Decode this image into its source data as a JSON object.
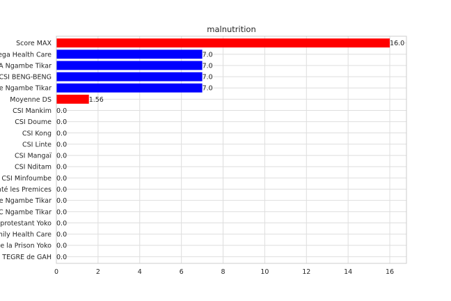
{
  "chart_data": {
    "type": "bar",
    "orientation": "horizontal",
    "title": "malnutrition",
    "xlabel": "",
    "ylabel": "",
    "xlim": [
      0,
      16.8
    ],
    "x_ticks": [
      0,
      2,
      4,
      6,
      8,
      10,
      12,
      14,
      16
    ],
    "grid": true,
    "categories": [
      "Score MAX",
      "ega Health  Care",
      "MA Ngambe Tikar",
      "CSI BENG-BENG",
      "se Ngambe Tikar",
      "Moyenne DS",
      "CSI Mankim",
      "CSI Doume",
      "CSI Kong",
      "CSI Linte",
      "CSI Mangaï",
      "CSI Nditam",
      "CSI Minfoumbe",
      "nté les Premices",
      "de Ngambe Tikar",
      "EC Ngambe Tikar",
      "protestant Yoko",
      "mily Health Care",
      "de la Prison Yoko",
      "TEGRE  de GAH"
    ],
    "values": [
      16.0,
      7.0,
      7.0,
      7.0,
      7.0,
      1.56,
      0.0,
      0.0,
      0.0,
      0.0,
      0.0,
      0.0,
      0.0,
      0.0,
      0.0,
      0.0,
      0.0,
      0.0,
      0.0,
      0.0
    ],
    "value_labels": [
      "16.0",
      "7.0",
      "7.0",
      "7.0",
      "7.0",
      "1.56",
      "0.0",
      "0.0",
      "0.0",
      "0.0",
      "0.0",
      "0.0",
      "0.0",
      "0.0",
      "0.0",
      "0.0",
      "0.0",
      "0.0",
      "0.0",
      "0.0"
    ],
    "bar_colors": [
      "#ff0000",
      "#0000ff",
      "#0000ff",
      "#0000ff",
      "#0000ff",
      "#ff0000",
      "#0000ff",
      "#0000ff",
      "#0000ff",
      "#0000ff",
      "#0000ff",
      "#0000ff",
      "#0000ff",
      "#0000ff",
      "#0000ff",
      "#0000ff",
      "#0000ff",
      "#0000ff",
      "#0000ff",
      "#0000ff"
    ]
  }
}
